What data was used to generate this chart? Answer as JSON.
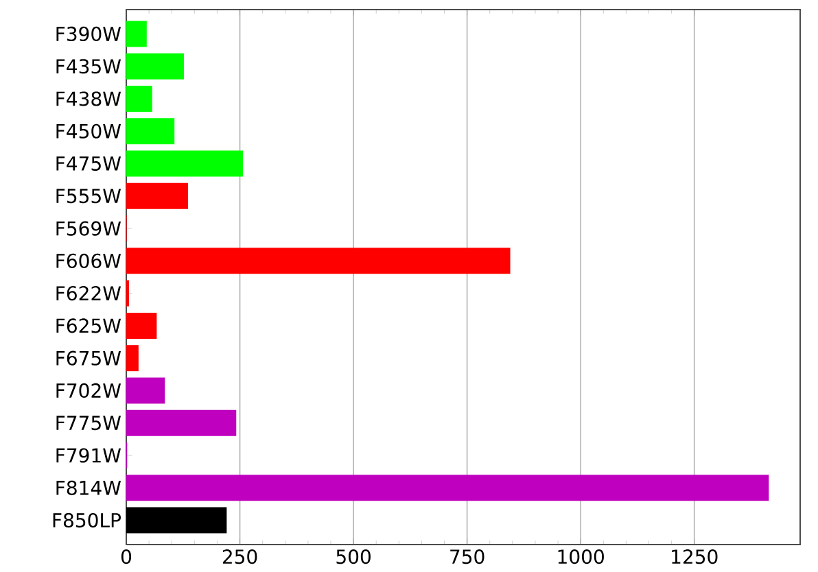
{
  "chart_data": {
    "type": "bar",
    "orientation": "horizontal",
    "categories": [
      "F390W",
      "F435W",
      "F438W",
      "F450W",
      "F475W",
      "F555W",
      "F569W",
      "F606W",
      "F622W",
      "F625W",
      "F675W",
      "F702W",
      "F775W",
      "F791W",
      "F814W",
      "F850LP"
    ],
    "values": [
      45,
      127,
      57,
      106,
      257,
      136,
      1,
      845,
      6,
      67,
      27,
      85,
      242,
      2,
      1414,
      221
    ],
    "colors": [
      "#00ff00",
      "#00ff00",
      "#00ff00",
      "#00ff00",
      "#00ff00",
      "#ff0000",
      "#ff0000",
      "#ff0000",
      "#ff0000",
      "#ff0000",
      "#ff0000",
      "#bf00bf",
      "#bf00bf",
      "#bf00bf",
      "#bf00bf",
      "#000000"
    ],
    "xlim": [
      0,
      1483
    ],
    "xticks": [
      0,
      250,
      500,
      750,
      1000,
      1250
    ],
    "grid": "x"
  }
}
